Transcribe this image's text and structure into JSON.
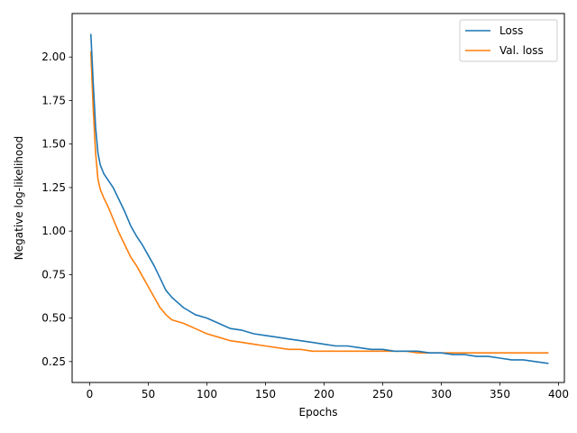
{
  "chart_data": {
    "type": "line",
    "title": "",
    "xlabel": "Epochs",
    "ylabel": "Negative log-likelihood",
    "xlim": [
      -15,
      405
    ],
    "ylim": [
      0.13,
      2.25
    ],
    "xticks": [
      0,
      50,
      100,
      150,
      200,
      250,
      300,
      350,
      400
    ],
    "xtick_labels": [
      "0",
      "50",
      "100",
      "150",
      "200",
      "250",
      "300",
      "350",
      "400"
    ],
    "yticks": [
      0.25,
      0.5,
      0.75,
      1.0,
      1.25,
      1.5,
      1.75,
      2.0
    ],
    "ytick_labels": [
      "0.25",
      "0.50",
      "0.75",
      "1.00",
      "1.25",
      "1.50",
      "1.75",
      "2.00"
    ],
    "grid": false,
    "legend_position": "top-right",
    "series": [
      {
        "name": "Loss",
        "color": "#1f77b4",
        "x": [
          1,
          3,
          5,
          7,
          9,
          12,
          15,
          20,
          25,
          30,
          35,
          40,
          45,
          50,
          55,
          60,
          65,
          70,
          75,
          80,
          90,
          100,
          110,
          120,
          130,
          140,
          150,
          160,
          170,
          180,
          190,
          200,
          210,
          220,
          230,
          240,
          250,
          260,
          270,
          280,
          290,
          300,
          310,
          320,
          330,
          340,
          350,
          360,
          370,
          380,
          391
        ],
        "y": [
          2.13,
          1.85,
          1.6,
          1.45,
          1.38,
          1.33,
          1.3,
          1.25,
          1.18,
          1.11,
          1.03,
          0.97,
          0.92,
          0.86,
          0.8,
          0.73,
          0.66,
          0.62,
          0.59,
          0.56,
          0.52,
          0.5,
          0.47,
          0.44,
          0.43,
          0.41,
          0.4,
          0.39,
          0.38,
          0.37,
          0.36,
          0.35,
          0.34,
          0.34,
          0.33,
          0.32,
          0.32,
          0.31,
          0.31,
          0.31,
          0.3,
          0.3,
          0.29,
          0.29,
          0.28,
          0.28,
          0.27,
          0.26,
          0.26,
          0.25,
          0.24
        ]
      },
      {
        "name": "Val. loss",
        "color": "#ff7f0e",
        "x": [
          1,
          3,
          5,
          7,
          9,
          12,
          15,
          20,
          25,
          30,
          35,
          40,
          45,
          50,
          55,
          60,
          65,
          70,
          75,
          80,
          90,
          100,
          110,
          120,
          130,
          140,
          150,
          160,
          170,
          180,
          190,
          200,
          210,
          220,
          230,
          240,
          250,
          260,
          270,
          280,
          290,
          300,
          310,
          320,
          330,
          340,
          350,
          360,
          370,
          380,
          391
        ],
        "y": [
          2.03,
          1.7,
          1.45,
          1.3,
          1.24,
          1.19,
          1.15,
          1.07,
          0.99,
          0.92,
          0.85,
          0.8,
          0.74,
          0.68,
          0.62,
          0.56,
          0.52,
          0.49,
          0.48,
          0.47,
          0.44,
          0.41,
          0.39,
          0.37,
          0.36,
          0.35,
          0.34,
          0.33,
          0.32,
          0.32,
          0.31,
          0.31,
          0.31,
          0.31,
          0.31,
          0.31,
          0.31,
          0.31,
          0.31,
          0.3,
          0.3,
          0.3,
          0.3,
          0.3,
          0.3,
          0.3,
          0.3,
          0.3,
          0.3,
          0.3,
          0.3
        ]
      }
    ]
  }
}
